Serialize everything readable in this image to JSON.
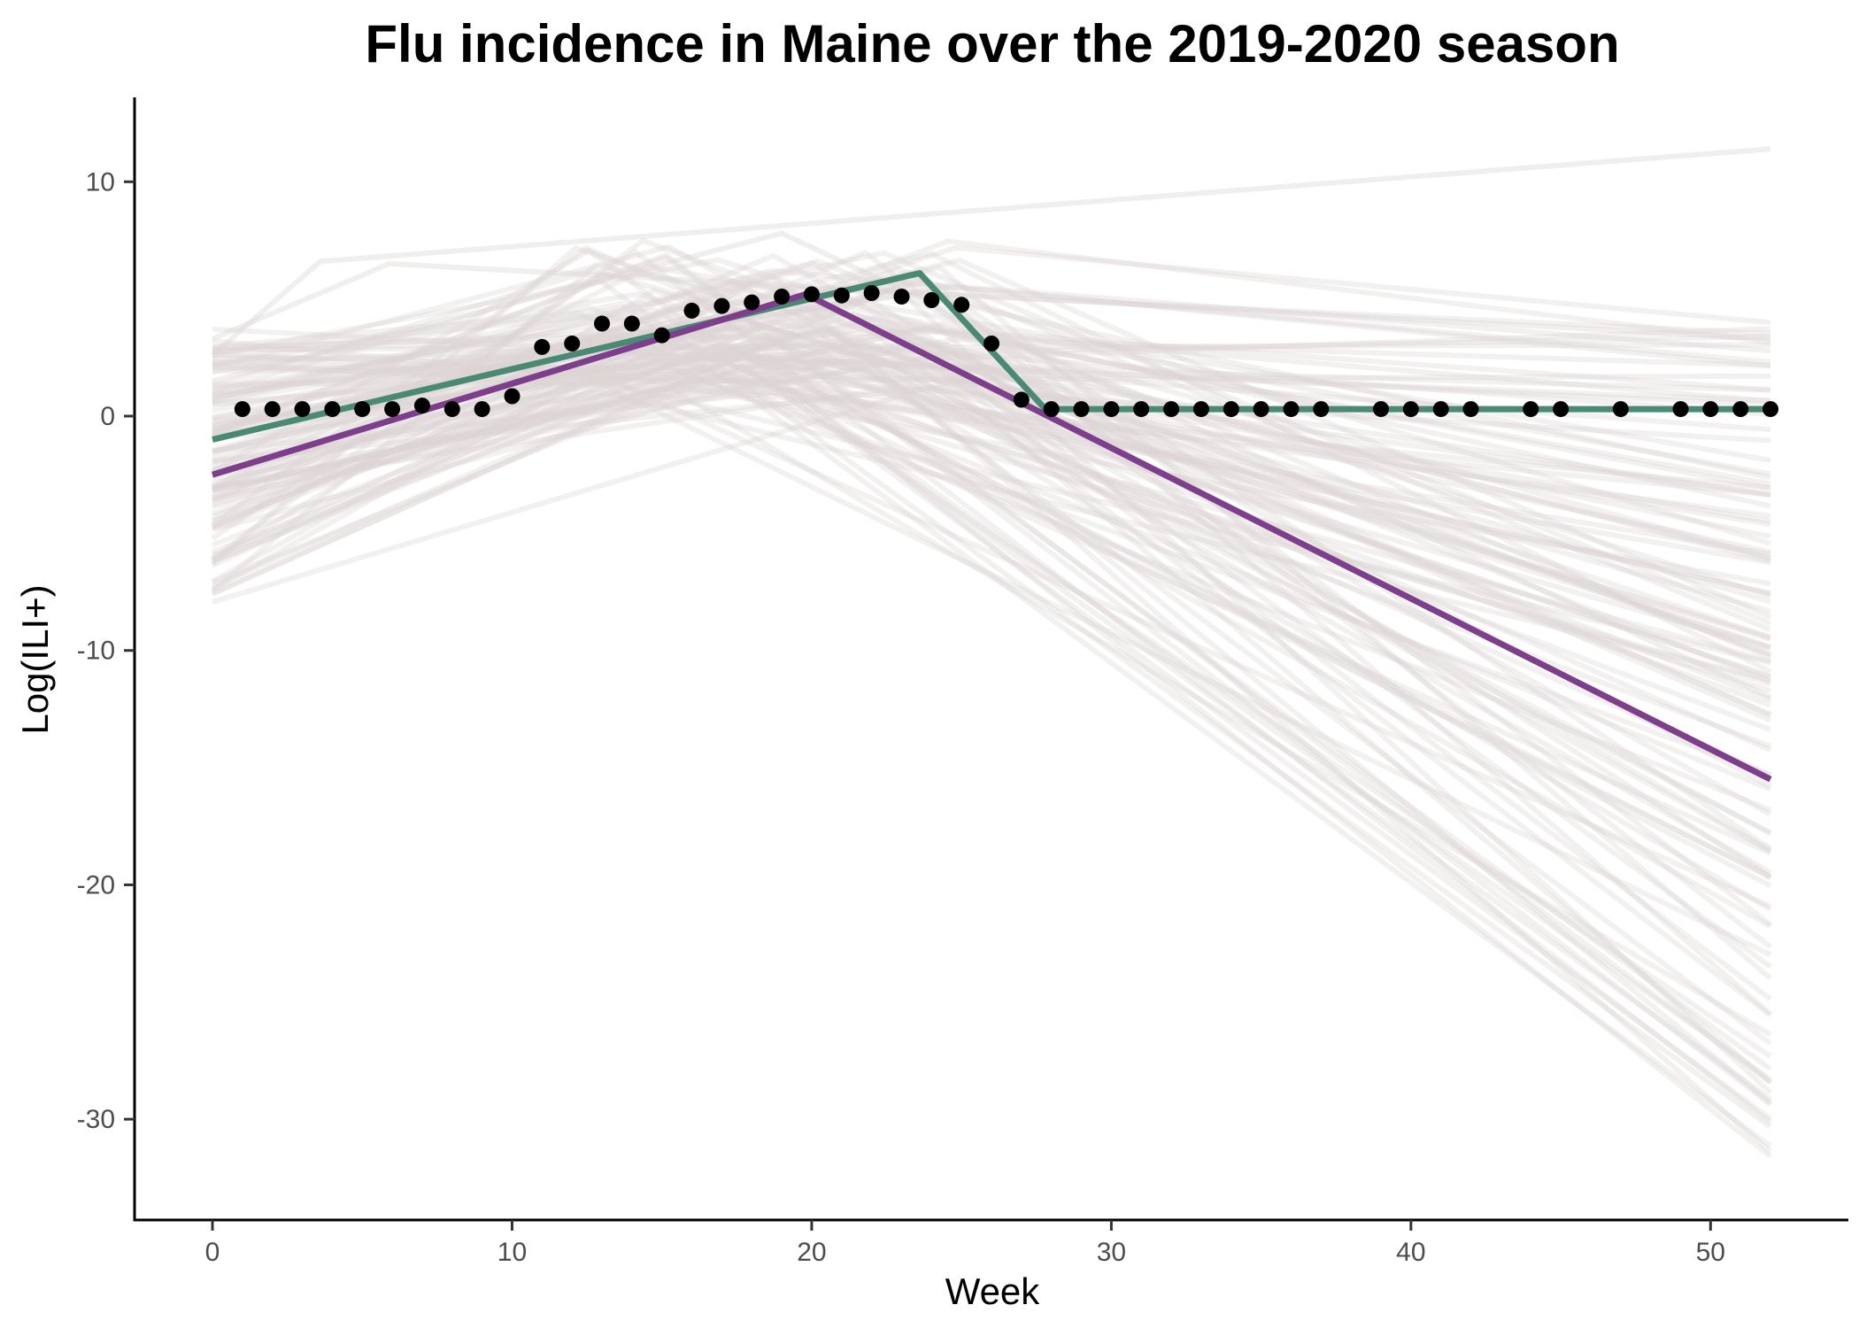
{
  "chart_data": {
    "type": "line",
    "title": "Flu incidence in Maine over the 2019-2020 season",
    "xlabel": "Week",
    "ylabel": "Log(ILI+)",
    "xlim": [
      -2.6,
      54.6
    ],
    "ylim": [
      -34.3,
      13.6
    ],
    "x_ticks": [
      0,
      10,
      20,
      30,
      40,
      50
    ],
    "y_ticks": [
      -30,
      -20,
      -10,
      0,
      10
    ],
    "x_tick_labels": [
      "0",
      "10",
      "20",
      "30",
      "40",
      "50"
    ],
    "y_tick_labels": [
      "-30",
      "-20",
      "-10",
      "0",
      "10"
    ],
    "grid": false,
    "legend": "none",
    "colors": {
      "observed": "#000000",
      "fit_primary": "#4a8a75",
      "fit_secondary": "#7d3f8c",
      "ensemble": "#ddd5d5"
    },
    "series": [
      {
        "kind": "points",
        "x": [
          1,
          2,
          3,
          4,
          5,
          6,
          7,
          8,
          9,
          10,
          11,
          12,
          13,
          14,
          15,
          16,
          17,
          18,
          19,
          20,
          21,
          22,
          23,
          24,
          25,
          26,
          27,
          28,
          29,
          30,
          31,
          32,
          33,
          34,
          35,
          36,
          37,
          39,
          40,
          41,
          42,
          44,
          45,
          47,
          49,
          50,
          51,
          52
        ],
        "values": [
          0.3,
          0.3,
          0.3,
          0.3,
          0.3,
          0.3,
          0.45,
          0.3,
          0.3,
          0.85,
          2.95,
          3.1,
          3.95,
          3.95,
          3.45,
          4.5,
          4.7,
          4.85,
          5.1,
          5.2,
          5.15,
          5.25,
          5.1,
          4.95,
          4.75,
          3.1,
          0.7,
          0.3,
          0.3,
          0.3,
          0.3,
          0.3,
          0.3,
          0.3,
          0.3,
          0.3,
          0.3,
          0.3,
          0.3,
          0.3,
          0.3,
          0.3,
          0.3,
          0.3,
          0.3,
          0.3,
          0.3,
          0.3
        ]
      },
      {
        "kind": "line",
        "x": [
          0,
          23.6,
          27.8,
          52
        ],
        "values": [
          -1.0,
          6.1,
          0.3,
          0.3
        ]
      },
      {
        "kind": "line",
        "x": [
          0,
          19.8,
          52
        ],
        "values": [
          -2.5,
          5.2,
          -15.5
        ]
      }
    ],
    "ensemble": {
      "count": 120,
      "x_start": 0,
      "x_end": 52,
      "start_range": [
        -8,
        4
      ],
      "peak_week_range": [
        12,
        25
      ],
      "peak_value_range": [
        1,
        7.5
      ],
      "end_range": [
        -32,
        4
      ],
      "outliers": [
        {
          "x": [
            0,
            3.6,
            52
          ],
          "values": [
            2.6,
            6.6,
            11.4
          ]
        },
        {
          "x": [
            0,
            5.9,
            52
          ],
          "values": [
            3.3,
            6.5,
            3.3
          ]
        },
        {
          "x": [
            0,
            19,
            52
          ],
          "values": [
            1.5,
            7.8,
            -12
          ]
        }
      ]
    }
  }
}
